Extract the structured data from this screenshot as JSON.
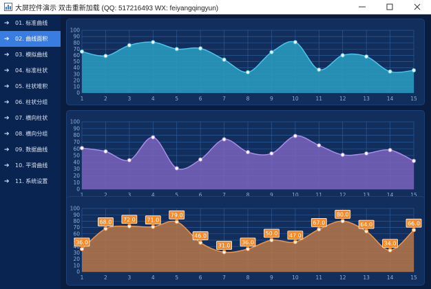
{
  "window": {
    "title": "大屏控件演示 双击重新加载 (QQ: 517216493 WX: feiyangqingyun)",
    "controls": [
      "minimize",
      "maximize",
      "close"
    ]
  },
  "sidebar": {
    "active_index": 1,
    "items": [
      {
        "label": "01. 标准曲线"
      },
      {
        "label": "02. 曲线面积"
      },
      {
        "label": "03. 模拟曲线"
      },
      {
        "label": "04. 标准柱状"
      },
      {
        "label": "05. 柱状堆积"
      },
      {
        "label": "06. 柱状分组"
      },
      {
        "label": "07. 横向柱状"
      },
      {
        "label": "08. 横向分组"
      },
      {
        "label": "09. 数据曲线"
      },
      {
        "label": "10. 平滑曲线"
      },
      {
        "label": "11. 系统设置"
      }
    ]
  },
  "chart_data": [
    {
      "type": "area",
      "x": [
        1,
        2,
        3,
        4,
        5,
        6,
        7,
        8,
        9,
        10,
        11,
        12,
        13,
        14,
        15
      ],
      "values": [
        66,
        59,
        76,
        81,
        70,
        71,
        53,
        33,
        65,
        81,
        37,
        60,
        58,
        34,
        36
      ],
      "ylim": [
        0,
        100
      ],
      "yticks": [
        0,
        10,
        20,
        30,
        40,
        50,
        60,
        70,
        80,
        90,
        100
      ],
      "grid": true,
      "smooth": true,
      "line_color": "#4cc3ea",
      "fill_color": "#2a9fc2",
      "data_labels": false
    },
    {
      "type": "area",
      "x": [
        1,
        2,
        3,
        4,
        5,
        6,
        7,
        8,
        9,
        10,
        11,
        12,
        13,
        14,
        15
      ],
      "values": [
        61,
        56,
        43,
        77,
        31,
        44,
        74,
        55,
        53,
        79,
        65,
        51,
        53,
        58,
        42
      ],
      "ylim": [
        0,
        100
      ],
      "yticks": [
        0,
        10,
        20,
        30,
        40,
        50,
        60,
        70,
        80,
        90,
        100
      ],
      "grid": true,
      "smooth": true,
      "line_color": "#a98ce8",
      "fill_color": "#7a63bd",
      "data_labels": false
    },
    {
      "type": "area",
      "x": [
        1,
        2,
        3,
        4,
        5,
        6,
        7,
        8,
        9,
        10,
        11,
        12,
        13,
        14,
        15
      ],
      "values": [
        36.0,
        68.0,
        72.0,
        71.0,
        79.0,
        46.0,
        31.0,
        36.0,
        50.0,
        47.0,
        67.0,
        80.0,
        64.0,
        34.0,
        66.0
      ],
      "value_labels": [
        "36.0",
        "68.0",
        "72.0",
        "71.0",
        "79.0",
        "46.0",
        "31.0",
        "36.0",
        "50.0",
        "47.0",
        "67.0",
        "80.0",
        "64.0",
        "34.0",
        "66.0"
      ],
      "ylim": [
        0,
        100
      ],
      "yticks": [
        0,
        10,
        20,
        30,
        40,
        50,
        60,
        70,
        80,
        90,
        100
      ],
      "grid": true,
      "smooth": true,
      "line_color": "#f0944a",
      "fill_color": "#b77748",
      "data_labels": true,
      "label_color": "#f58a2a"
    }
  ]
}
